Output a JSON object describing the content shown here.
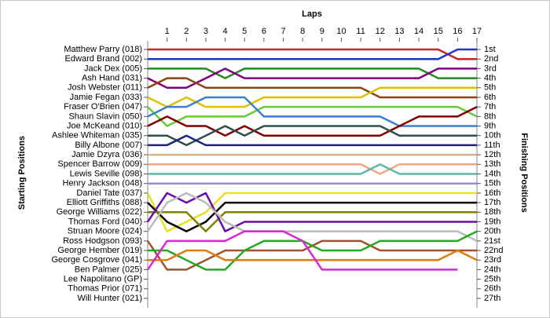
{
  "chart_data": {
    "type": "line",
    "x_title": "Laps",
    "y_title": "Starting Positions",
    "y2_title": "Finishing Positions",
    "x": [
      0,
      1,
      2,
      3,
      4,
      5,
      6,
      7,
      8,
      9,
      10,
      11,
      12,
      13,
      14,
      15,
      16,
      17
    ],
    "xlim": [
      0,
      17
    ],
    "xticks": [
      1,
      2,
      3,
      4,
      5,
      6,
      7,
      8,
      9,
      10,
      11,
      12,
      13,
      14,
      15,
      16,
      17
    ],
    "ylim": [
      1,
      27
    ],
    "y_inverted": true,
    "y2lim": [
      1,
      27
    ],
    "y2ticks": [
      {
        "value": 1,
        "label": "1st"
      },
      {
        "value": 2,
        "label": "2nd"
      },
      {
        "value": 3,
        "label": "3rd"
      },
      {
        "value": 4,
        "label": "4th"
      },
      {
        "value": 5,
        "label": "5th"
      },
      {
        "value": 6,
        "label": "6th"
      },
      {
        "value": 7,
        "label": "7th"
      },
      {
        "value": 8,
        "label": "8th"
      },
      {
        "value": 9,
        "label": "9th"
      },
      {
        "value": 10,
        "label": "10th"
      },
      {
        "value": 11,
        "label": "11th"
      },
      {
        "value": 12,
        "label": "12th"
      },
      {
        "value": 13,
        "label": "13th"
      },
      {
        "value": 14,
        "label": "14th"
      },
      {
        "value": 15,
        "label": "15th"
      },
      {
        "value": 16,
        "label": "16th"
      },
      {
        "value": 17,
        "label": "17th"
      },
      {
        "value": 18,
        "label": "18th"
      },
      {
        "value": 19,
        "label": "19th"
      },
      {
        "value": 20,
        "label": "20th"
      },
      {
        "value": 21,
        "label": "21st"
      },
      {
        "value": 22,
        "label": "22nd"
      },
      {
        "value": 23,
        "label": "23rd"
      },
      {
        "value": 24,
        "label": "24th"
      },
      {
        "value": 25,
        "label": "25th"
      },
      {
        "value": 26,
        "label": "26th"
      },
      {
        "value": 27,
        "label": "27th"
      }
    ],
    "series": [
      {
        "name": "Matthew Parry (018)",
        "color": "#cc2222",
        "values": [
          1,
          1,
          1,
          1,
          1,
          1,
          1,
          1,
          1,
          1,
          1,
          1,
          1,
          1,
          1,
          1,
          2,
          2
        ]
      },
      {
        "name": "Edward Brand (002)",
        "color": "#2233cc",
        "values": [
          2,
          2,
          2,
          2,
          2,
          2,
          2,
          2,
          2,
          2,
          2,
          2,
          2,
          2,
          2,
          2,
          1,
          1
        ]
      },
      {
        "name": "Jack Dex (005)",
        "color": "#228b22",
        "values": [
          3,
          3,
          3,
          3,
          4,
          3,
          3,
          3,
          3,
          3,
          3,
          3,
          3,
          3,
          3,
          4,
          4,
          4
        ]
      },
      {
        "name": "Ash Hand (031)",
        "color": "#800080",
        "values": [
          4,
          5,
          5,
          4,
          3,
          4,
          4,
          4,
          4,
          4,
          4,
          4,
          4,
          4,
          4,
          3,
          3,
          3
        ]
      },
      {
        "name": "Josh Webster (011)",
        "color": "#8b4513",
        "values": [
          5,
          4,
          4,
          5,
          5,
          5,
          5,
          5,
          5,
          5,
          5,
          5,
          6,
          6,
          6,
          6,
          6,
          6
        ]
      },
      {
        "name": "Jamie Fegan (033)",
        "color": "#e0c000",
        "values": [
          6,
          7,
          6,
          7,
          7,
          7,
          6,
          6,
          6,
          6,
          6,
          6,
          5,
          5,
          5,
          5,
          5,
          5
        ]
      },
      {
        "name": "Fraser O'Brien (047)",
        "color": "#66cc33",
        "values": [
          7,
          9,
          8,
          8,
          8,
          8,
          7,
          7,
          7,
          7,
          7,
          7,
          7,
          7,
          7,
          7,
          7,
          8
        ]
      },
      {
        "name": "Shaun Slavin (050)",
        "color": "#3b7fd0",
        "values": [
          8,
          7,
          7,
          6,
          6,
          6,
          8,
          8,
          8,
          8,
          8,
          8,
          8,
          9,
          9,
          9,
          9,
          9
        ]
      },
      {
        "name": "Joe McKeand (010)",
        "color": "#800000",
        "values": [
          9,
          8,
          9,
          9,
          10,
          9,
          10,
          10,
          10,
          10,
          10,
          10,
          10,
          9,
          8,
          8,
          8,
          7
        ]
      },
      {
        "name": "Ashlee Whiteman (035)",
        "color": "#2f4f4f",
        "values": [
          10,
          10,
          11,
          10,
          9,
          10,
          9,
          9,
          9,
          9,
          9,
          9,
          9,
          10,
          10,
          10,
          10,
          10
        ]
      },
      {
        "name": "Billy Albone (007)",
        "color": "#1a237e",
        "values": [
          11,
          11,
          10,
          11,
          11,
          11,
          11,
          11,
          11,
          11,
          11,
          11,
          11,
          11,
          11,
          11,
          11,
          11
        ]
      },
      {
        "name": "Jamie Dzyra (036)",
        "color": "#d2b48c",
        "values": [
          12,
          12,
          12,
          12,
          12,
          12,
          12,
          12,
          12,
          12,
          12,
          12,
          12,
          12,
          12,
          12,
          12,
          12
        ]
      },
      {
        "name": "Spencer Barrow (009)",
        "color": "#f4a582",
        "values": [
          13,
          13,
          13,
          13,
          13,
          13,
          13,
          13,
          13,
          13,
          13,
          13,
          14,
          13,
          13,
          13,
          13,
          13
        ]
      },
      {
        "name": "Lewis Seville (098)",
        "color": "#5fb8a6",
        "values": [
          14,
          14,
          14,
          14,
          14,
          14,
          14,
          14,
          14,
          14,
          14,
          14,
          13,
          14,
          14,
          14,
          14,
          14
        ]
      },
      {
        "name": "Henry Jackson (048)",
        "color": "#9b8fc8",
        "values": [
          15,
          15,
          15,
          15,
          15,
          15,
          15,
          15,
          15,
          15,
          15,
          15,
          15,
          15,
          15,
          15,
          15,
          15
        ]
      },
      {
        "name": "Daniel Tate (037)",
        "color": "#e8e020",
        "values": [
          16,
          20,
          19,
          18,
          16,
          16,
          16,
          16,
          16,
          16,
          16,
          16,
          16,
          16,
          16,
          16,
          16,
          16
        ]
      },
      {
        "name": "Elliott Griffiths (088)",
        "color": "#000000",
        "values": [
          17,
          19,
          20,
          19,
          17,
          17,
          17,
          17,
          17,
          17,
          17,
          17,
          17,
          17,
          17,
          17,
          17,
          17
        ]
      },
      {
        "name": "George Williams (022)",
        "color": "#808000",
        "values": [
          18,
          18,
          18,
          20,
          18,
          18,
          18,
          18,
          18,
          18,
          18,
          18,
          18,
          18,
          18,
          18,
          18,
          18
        ]
      },
      {
        "name": "Thomas Ford (040)",
        "color": "#6a0dad",
        "values": [
          19,
          16,
          17,
          16,
          20,
          19,
          19,
          19,
          19,
          19,
          19,
          19,
          19,
          19,
          19,
          19,
          19,
          19
        ]
      },
      {
        "name": "Struan Moore (024)",
        "color": "#bbbbbb",
        "values": [
          20,
          17,
          16,
          17,
          19,
          20,
          20,
          20,
          20,
          20,
          20,
          20,
          20,
          20,
          20,
          20,
          20,
          21
        ]
      },
      {
        "name": "Ross Hodgson (093)",
        "color": "#a0522d",
        "values": [
          21,
          24,
          24,
          23,
          22,
          22,
          22,
          22,
          22,
          21,
          21,
          21,
          22,
          22,
          22,
          22,
          22,
          22
        ]
      },
      {
        "name": "George Hember (019)",
        "color": "#22aa22",
        "values": [
          22,
          22,
          23,
          24,
          24,
          22,
          21,
          21,
          21,
          22,
          22,
          22,
          21,
          21,
          21,
          21,
          21,
          20
        ]
      },
      {
        "name": "George Cosgrove (041)",
        "color": "#e07b10",
        "values": [
          23,
          23,
          22,
          22,
          23,
          23,
          23,
          23,
          23,
          23,
          23,
          23,
          23,
          23,
          23,
          23,
          22,
          23
        ]
      },
      {
        "name": "Ben Palmer (025)",
        "color": "#dd22dd",
        "values": [
          24,
          21,
          21,
          21,
          21,
          20,
          20,
          20,
          21,
          24,
          24,
          24,
          24,
          24,
          24,
          24,
          24,
          null
        ]
      },
      {
        "name": "Lee Napolitano (GP)",
        "color": "#999999",
        "values": [
          25,
          null,
          null,
          null,
          null,
          null,
          null,
          null,
          null,
          null,
          null,
          null,
          null,
          null,
          null,
          null,
          null,
          null
        ]
      },
      {
        "name": "Thomas Prior (071)",
        "color": "#999999",
        "values": [
          26,
          null,
          null,
          null,
          null,
          null,
          null,
          null,
          null,
          null,
          null,
          null,
          null,
          null,
          null,
          null,
          null,
          null
        ]
      },
      {
        "name": "Will Hunter (021)",
        "color": "#999999",
        "values": [
          27,
          null,
          null,
          null,
          null,
          null,
          null,
          null,
          null,
          null,
          null,
          null,
          null,
          null,
          null,
          null,
          null,
          null
        ]
      }
    ]
  }
}
